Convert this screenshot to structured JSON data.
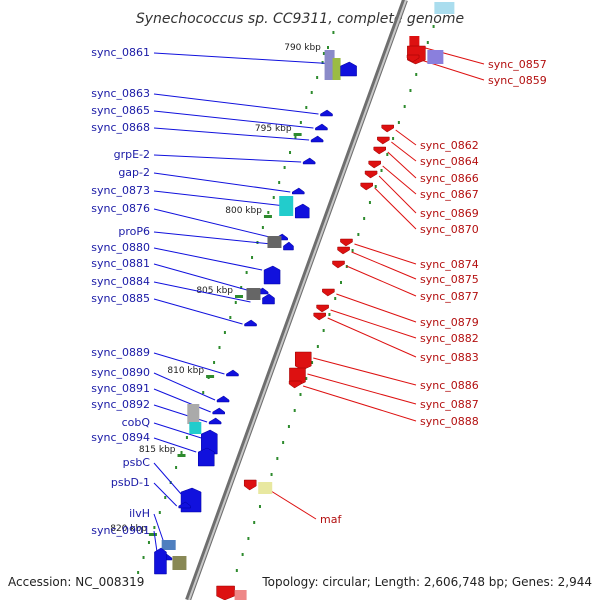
{
  "title": "Synechococcus sp. CC9311, complete genome",
  "footer": {
    "accession": "Accession: NC_008319",
    "topology": "Topology: circular; Length: 2,606,748 bp; Genes: 2,944"
  },
  "colors": {
    "backbone": "#8c8c8c",
    "forward_gene": "#1111dd",
    "reverse_gene": "#dd1111",
    "tick": "#2e8b2e",
    "label_left": "#1a1aa6",
    "label_right": "#b31010"
  },
  "scale_marks": [
    {
      "label": "790 kbp"
    },
    {
      "label": "795 kbp"
    },
    {
      "label": "800 kbp"
    },
    {
      "label": "805 kbp"
    },
    {
      "label": "810 kbp"
    },
    {
      "label": "815 kbp"
    },
    {
      "label": "820 kbp"
    }
  ],
  "forward_genes": [
    {
      "label": "sync_0861"
    },
    {
      "label": "sync_0863"
    },
    {
      "label": "sync_0865"
    },
    {
      "label": "sync_0868"
    },
    {
      "label": "grpE-2"
    },
    {
      "label": "gap-2"
    },
    {
      "label": "sync_0873"
    },
    {
      "label": "sync_0876"
    },
    {
      "label": "proP6"
    },
    {
      "label": "sync_0880"
    },
    {
      "label": "sync_0881"
    },
    {
      "label": "sync_0884"
    },
    {
      "label": "sync_0885"
    },
    {
      "label": "sync_0889"
    },
    {
      "label": "sync_0890"
    },
    {
      "label": "sync_0891"
    },
    {
      "label": "sync_0892"
    },
    {
      "label": "cobQ"
    },
    {
      "label": "sync_0894"
    },
    {
      "label": "psbC"
    },
    {
      "label": "psbD-1"
    },
    {
      "label": "ilvH"
    },
    {
      "label": "sync_0901"
    }
  ],
  "reverse_genes": [
    {
      "label": "sync_0857"
    },
    {
      "label": "sync_0859"
    },
    {
      "label": "sync_0862"
    },
    {
      "label": "sync_0864"
    },
    {
      "label": "sync_0866"
    },
    {
      "label": "sync_0867"
    },
    {
      "label": "sync_0869"
    },
    {
      "label": "sync_0870"
    },
    {
      "label": "sync_0874"
    },
    {
      "label": "sync_0875"
    },
    {
      "label": "sync_0877"
    },
    {
      "label": "sync_0879"
    },
    {
      "label": "sync_0882"
    },
    {
      "label": "sync_0883"
    },
    {
      "label": "sync_0886"
    },
    {
      "label": "sync_0887"
    },
    {
      "label": "sync_0888"
    },
    {
      "label": "maf"
    }
  ]
}
